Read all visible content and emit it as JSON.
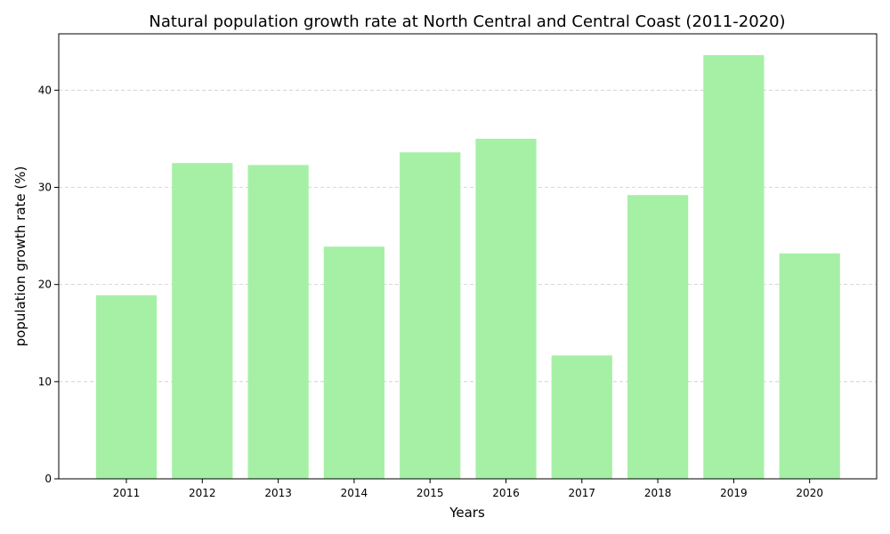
{
  "chart_data": {
    "type": "bar",
    "title": "Natural population growth rate at North Central and Central Coast (2011-2020)",
    "xlabel": "Years",
    "ylabel": "population growth rate (%)",
    "categories": [
      "2011",
      "2012",
      "2013",
      "2014",
      "2015",
      "2016",
      "2017",
      "2018",
      "2019",
      "2020"
    ],
    "values": [
      18.9,
      32.5,
      32.3,
      23.9,
      33.6,
      35.0,
      12.7,
      29.2,
      43.6,
      23.2
    ],
    "ylim": [
      0,
      45.8
    ],
    "yticks": [
      0,
      10,
      20,
      30,
      40
    ],
    "grid": "y-dashed",
    "legend": "none",
    "bar_color": "#a6f0a6"
  }
}
